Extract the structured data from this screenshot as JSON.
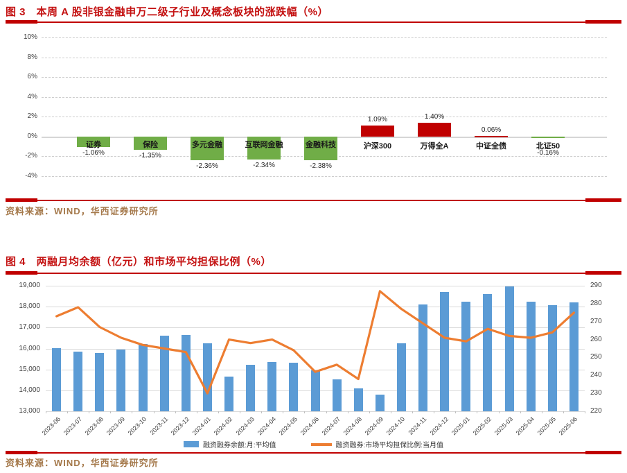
{
  "report": {
    "figure3": {
      "caption": "图 3　本周 A 股非银金融申万二级子行业及概念板块的涨跌幅（%）",
      "source": "资料来源：WIND，华西证券研究所"
    },
    "figure4": {
      "caption": "图 4　两融月均余额（亿元）和市场平均担保比例（%）",
      "source": "资料来源：WIND，华西证券研究所"
    }
  },
  "colors": {
    "caption_red": "#C41111",
    "rule_red": "#C00000",
    "source_brown": "#A5794B",
    "bar_up_red": "#C00000",
    "bar_down_green": "#70AD47",
    "bar_blue": "#5B9BD5",
    "line_orange": "#ED7D31",
    "grid_gray": "#D9D9D9",
    "axis_text": "#404040"
  },
  "chart_data": [
    {
      "type": "bar",
      "title": "本周A股非银金融申万二级子行业及概念板块的涨跌幅（%）",
      "categories": [
        "证券",
        "保险",
        "多元金融",
        "互联网金融",
        "金融科技",
        "沪深300",
        "万得全A",
        "中证全债",
        "北证50"
      ],
      "values": [
        -1.06,
        -1.35,
        -2.36,
        -2.34,
        -2.38,
        1.09,
        1.4,
        0.06,
        -0.16
      ],
      "value_labels": [
        "-1.06%",
        "-1.35%",
        "-2.36%",
        "-2.34%",
        "-2.38%",
        "1.09%",
        "1.40%",
        "0.06%",
        "-0.16%"
      ],
      "name_position": [
        "inside",
        "inside",
        "inside",
        "inside",
        "inside",
        "below",
        "below",
        "below",
        "below"
      ],
      "ylim": [
        -4,
        10
      ],
      "ytick_values": [
        10,
        8,
        6,
        4,
        2,
        0,
        -2,
        -4
      ],
      "ytick_labels": [
        "10%",
        "8%",
        "6%",
        "4%",
        "2%",
        "0%",
        "-2%",
        "-4%"
      ],
      "grid": "dashed",
      "legend": "none",
      "color_rule": "positive red, negative green"
    },
    {
      "type": "bar+line",
      "categories": [
        "2023-06",
        "2023-07",
        "2023-08",
        "2023-09",
        "2023-10",
        "2023-11",
        "2023-12",
        "2024-01",
        "2024-02",
        "2024-03",
        "2024-04",
        "2024-05",
        "2024-06",
        "2024-07",
        "2024-08",
        "2024-09",
        "2024-10",
        "2024-11",
        "2024-12",
        "2025-01",
        "2025-02",
        "2025-03",
        "2025-04",
        "2025-05",
        "2025-06"
      ],
      "series": [
        {
          "name": "融资融券余额:月:平均值",
          "type": "bar",
          "axis": "left",
          "values": [
            16020,
            15860,
            15780,
            15940,
            16210,
            16610,
            16660,
            16260,
            14660,
            15210,
            15350,
            15330,
            14960,
            14510,
            14100,
            13800,
            16240,
            18120,
            18700,
            18230,
            18600,
            18970,
            18240,
            18060,
            18210
          ]
        },
        {
          "name": "融资融券:市场平均担保比例:当月值",
          "type": "line",
          "axis": "right",
          "values": [
            273,
            278,
            267,
            261,
            257,
            255,
            253,
            230,
            260,
            258,
            260,
            254,
            242,
            246,
            238,
            287,
            277,
            269,
            261,
            259,
            266,
            262,
            261,
            264,
            275
          ]
        }
      ],
      "left_axis": {
        "range": [
          13000,
          19000
        ],
        "tick_labels": [
          "19,000",
          "18,000",
          "17,000",
          "16,000",
          "15,000",
          "14,000",
          "13,000"
        ]
      },
      "right_axis": {
        "range": [
          220,
          290
        ],
        "tick_labels": [
          "290",
          "280",
          "270",
          "260",
          "250",
          "240",
          "230",
          "220"
        ]
      },
      "grid": "solid",
      "legend_position": "bottom"
    }
  ]
}
